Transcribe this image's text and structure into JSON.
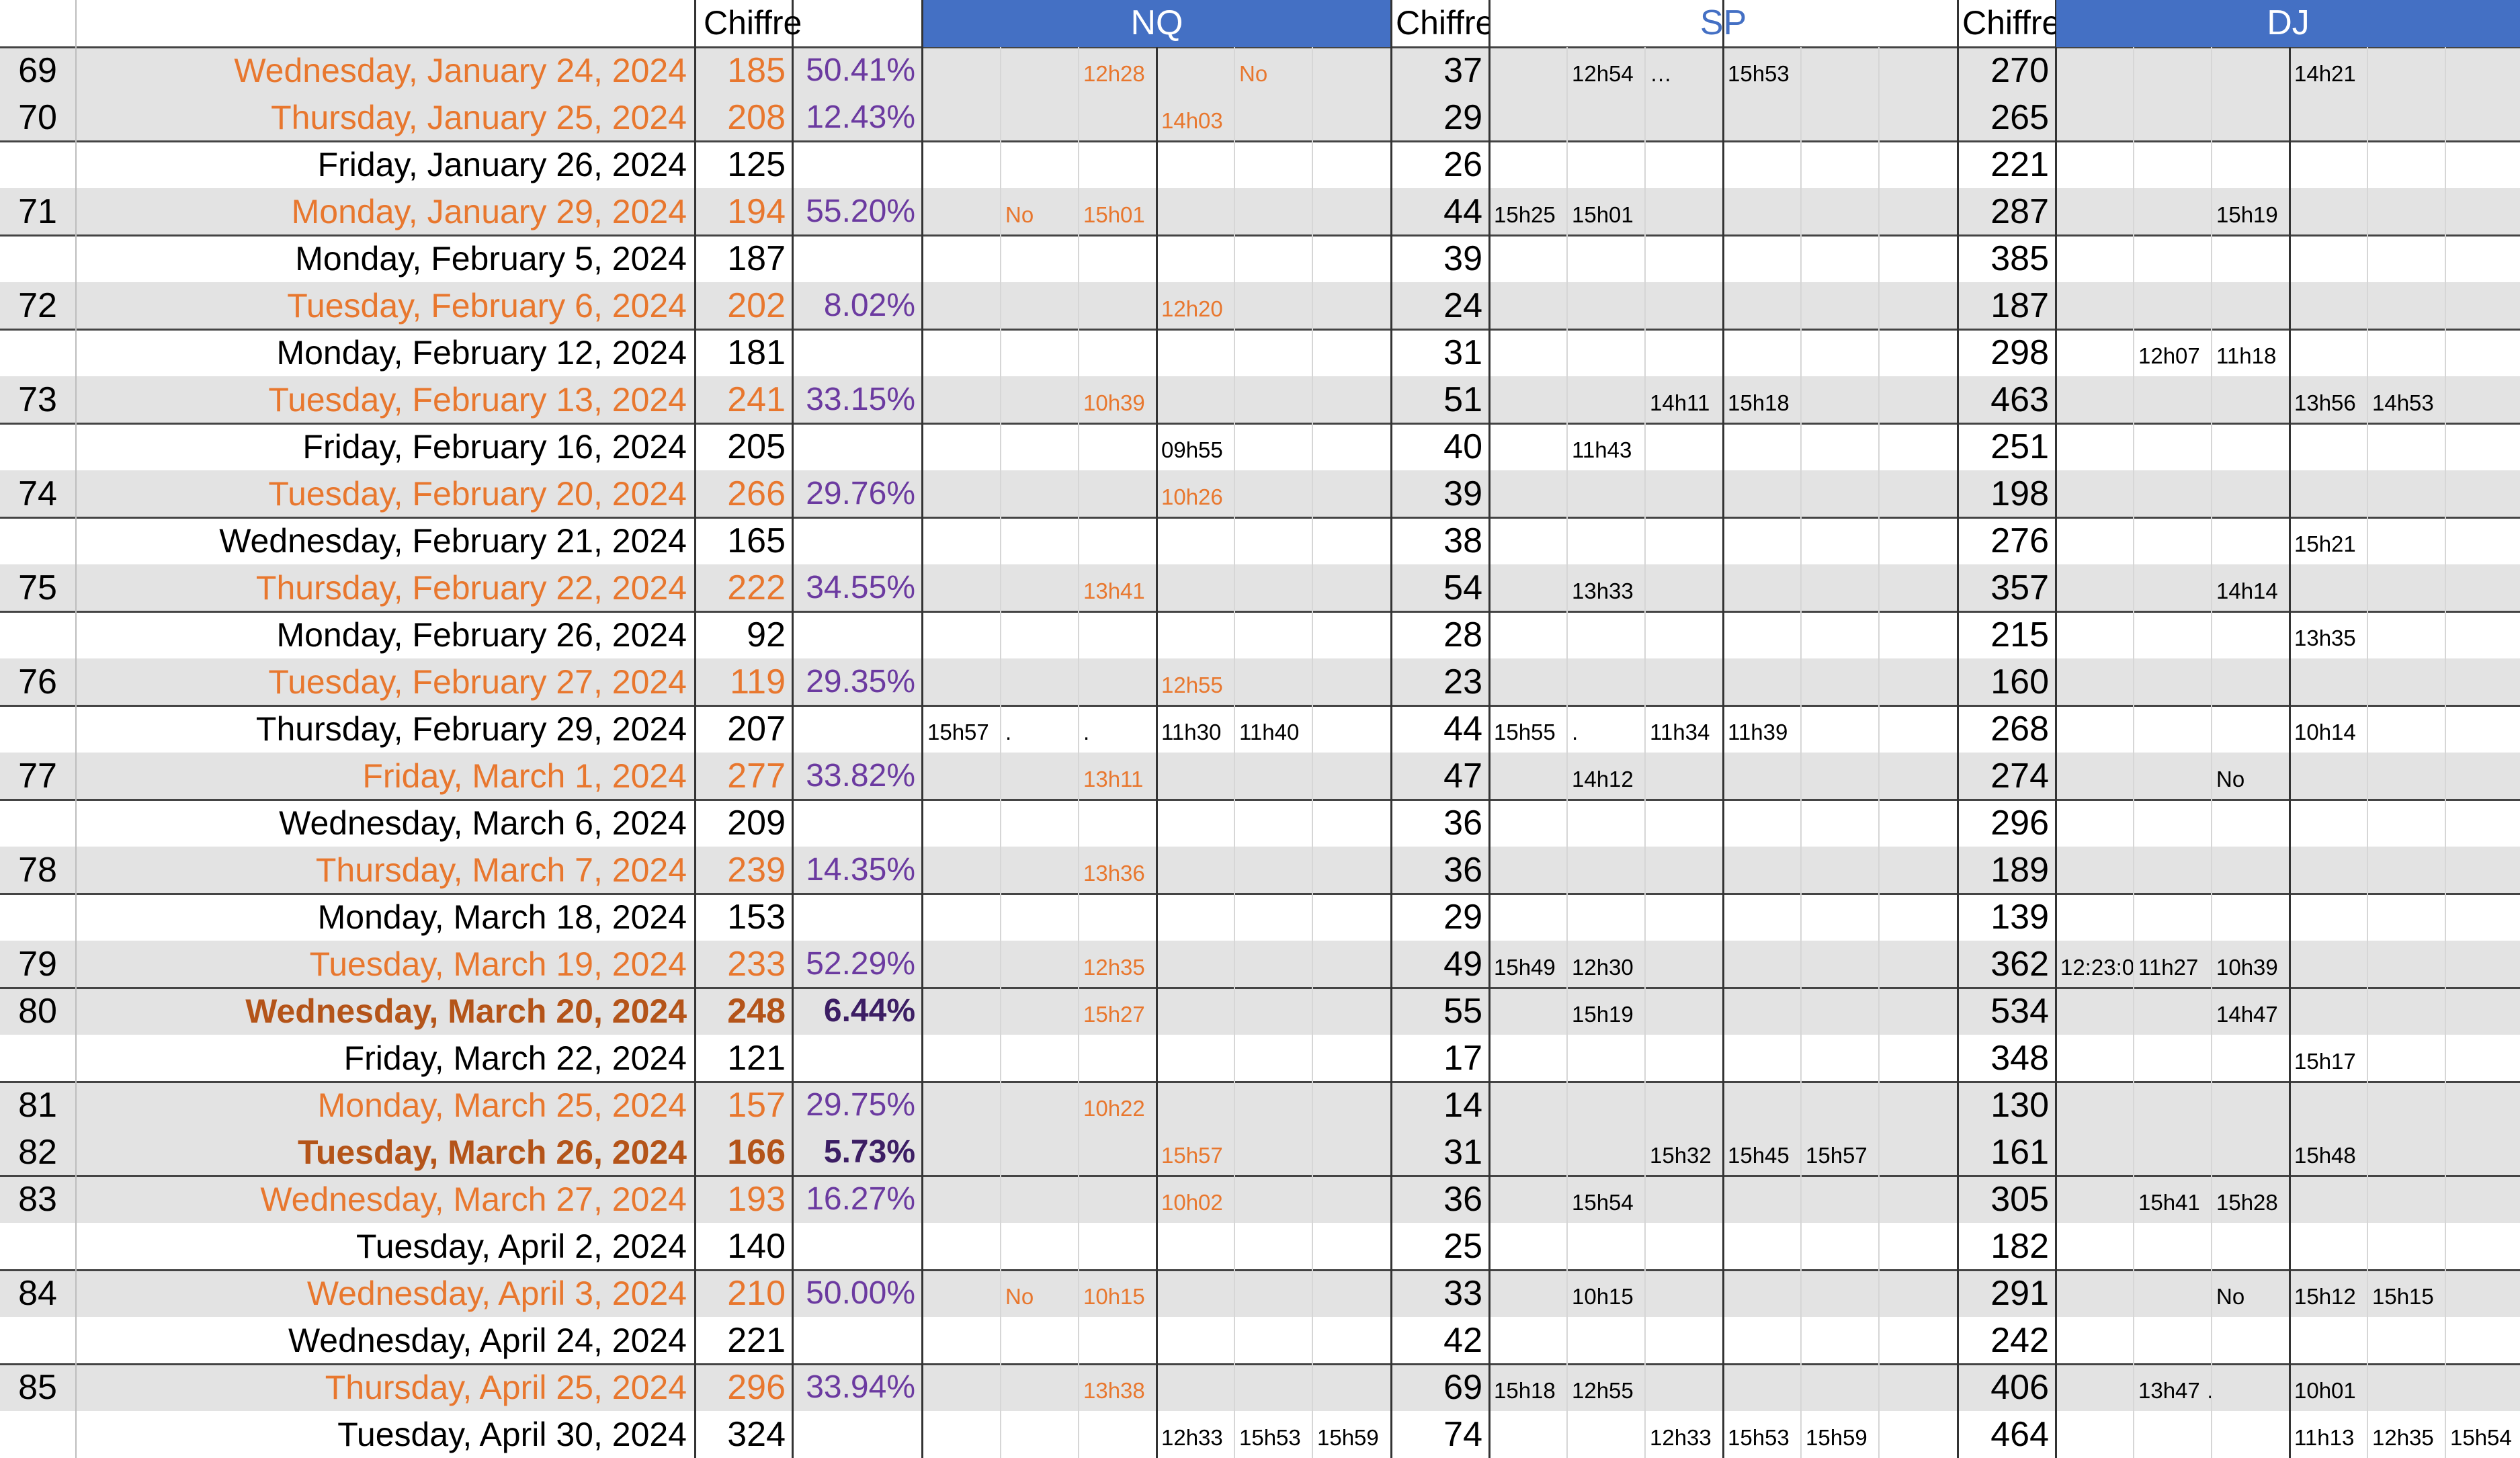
{
  "colors": {
    "accent_blue": "#4470c4",
    "orange": "#e8772e",
    "dark_orange": "#b45419",
    "purple": "#6b3aa0",
    "dark_purple": "#3c1e64",
    "band_gray": "#e3e3e3"
  },
  "header": {
    "chiffre1": "Chiffre",
    "nq": "NQ",
    "chiffre2": "Chiffre",
    "sp": "SP",
    "chiffre3": "Chiffre",
    "dj": "DJ"
  },
  "rows": [
    {
      "idx": "69",
      "date": "Wednesday, January 24, 2024",
      "chiffre": "185",
      "pct": "50.41%",
      "style": "o",
      "nq": [
        "",
        "",
        "12h28",
        "",
        "No",
        ""
      ],
      "c2": "37",
      "sp": [
        "",
        "12h54",
        "…",
        "15h53",
        ""
      ],
      "c3": "270",
      "dj": [
        "",
        "",
        "",
        "14h21",
        "",
        ""
      ]
    },
    {
      "idx": "70",
      "date": "Thursday, January 25, 2024",
      "chiffre": "208",
      "pct": "12.43%",
      "style": "o",
      "nq": [
        "",
        "",
        "",
        "14h03",
        "",
        ""
      ],
      "c2": "29",
      "sp": [
        "",
        "",
        "",
        "",
        ""
      ],
      "c3": "265",
      "dj": [
        "",
        "",
        "",
        "",
        "",
        ""
      ]
    },
    {
      "idx": "",
      "date": "Friday, January 26, 2024",
      "chiffre": "125",
      "pct": "",
      "style": "n",
      "nq": [
        "",
        "",
        "",
        "",
        "",
        ""
      ],
      "c2": "26",
      "sp": [
        "",
        "",
        "",
        "",
        ""
      ],
      "c3": "221",
      "dj": [
        "",
        "",
        "",
        "",
        "",
        ""
      ]
    },
    {
      "idx": "71",
      "date": "Monday, January 29, 2024",
      "chiffre": "194",
      "pct": "55.20%",
      "style": "o",
      "nq": [
        "",
        "No",
        "15h01",
        "",
        "",
        ""
      ],
      "c2": "44",
      "sp": [
        "15h25",
        "15h01",
        "",
        "",
        ""
      ],
      "c3": "287",
      "dj": [
        "",
        "",
        "15h19",
        "",
        "",
        ""
      ]
    },
    {
      "idx": "",
      "date": "Monday, February 5, 2024",
      "chiffre": "187",
      "pct": "",
      "style": "n",
      "nq": [
        "",
        "",
        "",
        "",
        "",
        ""
      ],
      "c2": "39",
      "sp": [
        "",
        "",
        "",
        "",
        ""
      ],
      "c3": "385",
      "dj": [
        "",
        "",
        "",
        "",
        "",
        ""
      ]
    },
    {
      "idx": "72",
      "date": "Tuesday, February 6, 2024",
      "chiffre": "202",
      "pct": "8.02%",
      "style": "o",
      "nq": [
        "",
        "",
        "",
        "12h20",
        "",
        ""
      ],
      "c2": "24",
      "sp": [
        "",
        "",
        "",
        "",
        ""
      ],
      "c3": "187",
      "dj": [
        "",
        "",
        "",
        "",
        "",
        ""
      ]
    },
    {
      "idx": "",
      "date": "Monday, February 12, 2024",
      "chiffre": "181",
      "pct": "",
      "style": "n",
      "nq": [
        "",
        "",
        "",
        "",
        "",
        ""
      ],
      "c2": "31",
      "sp": [
        "",
        "",
        "",
        "",
        ""
      ],
      "c3": "298",
      "dj": [
        "",
        "12h07",
        "11h18",
        "",
        "",
        ""
      ]
    },
    {
      "idx": "73",
      "date": "Tuesday, February 13, 2024",
      "chiffre": "241",
      "pct": "33.15%",
      "style": "o",
      "nq": [
        "",
        "",
        "10h39",
        "",
        "",
        ""
      ],
      "c2": "51",
      "sp": [
        "",
        "",
        "14h11",
        "15h18",
        ""
      ],
      "c3": "463",
      "dj": [
        "",
        "",
        "",
        "13h56",
        "14h53",
        ""
      ]
    },
    {
      "idx": "",
      "date": "Friday, February 16, 2024",
      "chiffre": "205",
      "pct": "",
      "style": "n",
      "nq": [
        "",
        "",
        "",
        "09h55",
        "",
        ""
      ],
      "c2": "40",
      "sp": [
        "",
        "11h43",
        "",
        "",
        ""
      ],
      "c3": "251",
      "dj": [
        "",
        "",
        "",
        "",
        "",
        ""
      ]
    },
    {
      "idx": "74",
      "date": "Tuesday, February 20, 2024",
      "chiffre": "266",
      "pct": "29.76%",
      "style": "o",
      "nq": [
        "",
        "",
        "",
        "10h26",
        "",
        ""
      ],
      "c2": "39",
      "sp": [
        "",
        "",
        "",
        "",
        ""
      ],
      "c3": "198",
      "dj": [
        "",
        "",
        "",
        "",
        "",
        ""
      ]
    },
    {
      "idx": "",
      "date": "Wednesday, February 21, 2024",
      "chiffre": "165",
      "pct": "",
      "style": "n",
      "nq": [
        "",
        "",
        "",
        "",
        "",
        ""
      ],
      "c2": "38",
      "sp": [
        "",
        "",
        "",
        "",
        ""
      ],
      "c3": "276",
      "dj": [
        "",
        "",
        "",
        "15h21",
        "",
        ""
      ]
    },
    {
      "idx": "75",
      "date": "Thursday, February 22, 2024",
      "chiffre": "222",
      "pct": "34.55%",
      "style": "o",
      "nq": [
        "",
        "",
        "13h41",
        "",
        "",
        ""
      ],
      "c2": "54",
      "sp": [
        "",
        "13h33",
        "",
        "",
        ""
      ],
      "c3": "357",
      "dj": [
        "",
        "",
        "14h14",
        "",
        "",
        ""
      ]
    },
    {
      "idx": "",
      "date": "Monday, February 26, 2024",
      "chiffre": "92",
      "pct": "",
      "style": "n",
      "nq": [
        "",
        "",
        "",
        "",
        "",
        ""
      ],
      "c2": "28",
      "sp": [
        "",
        "",
        "",
        "",
        ""
      ],
      "c3": "215",
      "dj": [
        "",
        "",
        "",
        "13h35",
        "",
        ""
      ]
    },
    {
      "idx": "76",
      "date": "Tuesday, February 27, 2024",
      "chiffre": "119",
      "pct": "29.35%",
      "style": "o",
      "nq": [
        "",
        "",
        "",
        "12h55",
        "",
        ""
      ],
      "c2": "23",
      "sp": [
        "",
        "",
        "",
        "",
        ""
      ],
      "c3": "160",
      "dj": [
        "",
        "",
        "",
        "",
        "",
        ""
      ]
    },
    {
      "idx": "",
      "date": "Thursday, February 29, 2024",
      "chiffre": "207",
      "pct": "",
      "style": "n",
      "nq": [
        "15h57",
        ".",
        ".",
        "11h30",
        "11h40",
        ""
      ],
      "c2": "44",
      "sp": [
        "15h55",
        ".",
        "11h34",
        "11h39",
        ""
      ],
      "c3": "268",
      "dj": [
        "",
        "",
        "",
        "10h14",
        "",
        ""
      ]
    },
    {
      "idx": "77",
      "date": "Friday, March 1, 2024",
      "chiffre": "277",
      "pct": "33.82%",
      "style": "o",
      "nq": [
        "",
        "",
        "13h11",
        "",
        "",
        ""
      ],
      "c2": "47",
      "sp": [
        "",
        "14h12",
        "",
        "",
        ""
      ],
      "c3": "274",
      "dj": [
        "",
        "",
        "No",
        "",
        "",
        ""
      ]
    },
    {
      "idx": "",
      "date": "Wednesday, March 6, 2024",
      "chiffre": "209",
      "pct": "",
      "style": "n",
      "nq": [
        "",
        "",
        "",
        "",
        "",
        ""
      ],
      "c2": "36",
      "sp": [
        "",
        "",
        "",
        "",
        ""
      ],
      "c3": "296",
      "dj": [
        "",
        "",
        "",
        "",
        "",
        ""
      ]
    },
    {
      "idx": "78",
      "date": "Thursday, March 7, 2024",
      "chiffre": "239",
      "pct": "14.35%",
      "style": "o",
      "nq": [
        "",
        "",
        "13h36",
        "",
        "",
        ""
      ],
      "c2": "36",
      "sp": [
        "",
        "",
        "",
        "",
        ""
      ],
      "c3": "189",
      "dj": [
        "",
        "",
        "",
        "",
        "",
        ""
      ]
    },
    {
      "idx": "",
      "date": "Monday, March 18, 2024",
      "chiffre": "153",
      "pct": "",
      "style": "n",
      "nq": [
        "",
        "",
        "",
        "",
        "",
        ""
      ],
      "c2": "29",
      "sp": [
        "",
        "",
        "",
        "",
        ""
      ],
      "c3": "139",
      "dj": [
        "",
        "",
        "",
        "",
        "",
        ""
      ]
    },
    {
      "idx": "79",
      "date": "Tuesday, March 19, 2024",
      "chiffre": "233",
      "pct": "52.29%",
      "style": "o",
      "nq": [
        "",
        "",
        "12h35",
        "",
        "",
        ""
      ],
      "c2": "49",
      "sp": [
        "15h49",
        "12h30",
        "",
        "",
        ""
      ],
      "c3": "362",
      "dj": [
        "12:23:0",
        "11h27",
        "10h39",
        "",
        "",
        ""
      ]
    },
    {
      "idx": "80",
      "date": "Wednesday, March 20, 2024",
      "chiffre": "248",
      "pct": "6.44%",
      "style": "b",
      "nq": [
        "",
        "",
        "15h27",
        "",
        "",
        ""
      ],
      "c2": "55",
      "sp": [
        "",
        "15h19",
        "",
        "",
        ""
      ],
      "c3": "534",
      "dj": [
        "",
        "",
        "14h47",
        "",
        "",
        ""
      ]
    },
    {
      "idx": "",
      "date": "Friday, March 22, 2024",
      "chiffre": "121",
      "pct": "",
      "style": "n",
      "nq": [
        "",
        "",
        "",
        "",
        "",
        ""
      ],
      "c2": "17",
      "sp": [
        "",
        "",
        "",
        "",
        ""
      ],
      "c3": "348",
      "dj": [
        "",
        "",
        "",
        "15h17",
        "",
        ""
      ]
    },
    {
      "idx": "81",
      "date": "Monday, March 25, 2024",
      "chiffre": "157",
      "pct": "29.75%",
      "style": "o",
      "nq": [
        "",
        "",
        "10h22",
        "",
        "",
        ""
      ],
      "c2": "14",
      "sp": [
        "",
        "",
        "",
        "",
        ""
      ],
      "c3": "130",
      "dj": [
        "",
        "",
        "",
        "",
        "",
        ""
      ]
    },
    {
      "idx": "82",
      "date": "Tuesday, March 26, 2024",
      "chiffre": "166",
      "pct": "5.73%",
      "style": "b",
      "nq": [
        "",
        "",
        "",
        "15h57",
        "",
        ""
      ],
      "c2": "31",
      "sp": [
        "",
        "",
        "15h32",
        "15h45",
        "15h57"
      ],
      "c3": "161",
      "dj": [
        "",
        "",
        "",
        "15h48",
        "",
        ""
      ]
    },
    {
      "idx": "83",
      "date": "Wednesday, March 27, 2024",
      "chiffre": "193",
      "pct": "16.27%",
      "style": "o",
      "nq": [
        "",
        "",
        "",
        "10h02",
        "",
        ""
      ],
      "c2": "36",
      "sp": [
        "",
        "15h54",
        "",
        "",
        ""
      ],
      "c3": "305",
      "dj": [
        "",
        "15h41",
        "15h28",
        "",
        "",
        ""
      ]
    },
    {
      "idx": "",
      "date": "Tuesday, April 2, 2024",
      "chiffre": "140",
      "pct": "",
      "style": "n",
      "nq": [
        "",
        "",
        "",
        "",
        "",
        ""
      ],
      "c2": "25",
      "sp": [
        "",
        "",
        "",
        "",
        ""
      ],
      "c3": "182",
      "dj": [
        "",
        "",
        "",
        "",
        "",
        ""
      ]
    },
    {
      "idx": "84",
      "date": "Wednesday, April 3, 2024",
      "chiffre": "210",
      "pct": "50.00%",
      "style": "o",
      "nq": [
        "",
        "No",
        "10h15",
        "",
        "",
        ""
      ],
      "c2": "33",
      "sp": [
        "",
        "10h15",
        "",
        "",
        ""
      ],
      "c3": "291",
      "dj": [
        "",
        "",
        "No",
        "15h12",
        "15h15",
        ""
      ]
    },
    {
      "idx": "",
      "date": "Wednesday, April 24, 2024",
      "chiffre": "221",
      "pct": "",
      "style": "n",
      "nq": [
        "",
        "",
        "",
        "",
        "",
        ""
      ],
      "c2": "42",
      "sp": [
        "",
        "",
        "",
        "",
        ""
      ],
      "c3": "242",
      "dj": [
        "",
        "",
        "",
        "",
        "",
        ""
      ]
    },
    {
      "idx": "85",
      "date": "Thursday, April 25, 2024",
      "chiffre": "296",
      "pct": "33.94%",
      "style": "o",
      "nq": [
        "",
        "",
        "13h38",
        "",
        "",
        ""
      ],
      "c2": "69",
      "sp": [
        "15h18",
        "12h55",
        "",
        "",
        ""
      ],
      "c3": "406",
      "dj": [
        "",
        "13h47 …",
        "",
        "10h01",
        "",
        ""
      ]
    },
    {
      "idx": "",
      "date": "Tuesday, April 30, 2024",
      "chiffre": "324",
      "pct": "",
      "style": "n",
      "nq": [
        "",
        "",
        "",
        "12h33",
        "15h53",
        "15h59"
      ],
      "c2": "74",
      "sp": [
        "",
        "",
        "12h33",
        "15h53",
        "15h59"
      ],
      "c3": "464",
      "dj": [
        "",
        "",
        "",
        "11h13",
        "12h35",
        "15h54"
      ]
    }
  ]
}
